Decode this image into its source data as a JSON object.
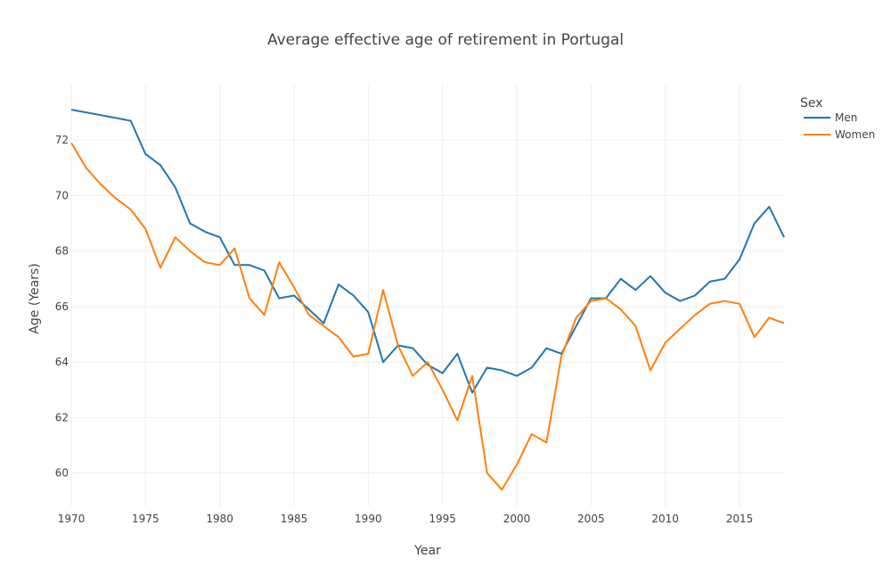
{
  "chart_data": {
    "type": "line",
    "title": "Average effective age of retirement in Portugal",
    "xlabel": "Year",
    "ylabel": "Age (Years)",
    "legend_title": "Sex",
    "legend_position": "top-right",
    "grid": true,
    "xlim": [
      1970,
      2018
    ],
    "ylim": [
      58.8,
      74.0
    ],
    "xticks": [
      1970,
      1975,
      1980,
      1985,
      1990,
      1995,
      2000,
      2005,
      2010,
      2015
    ],
    "yticks": [
      60,
      62,
      64,
      66,
      68,
      70,
      72
    ],
    "x": [
      1970,
      1971,
      1972,
      1973,
      1974,
      1975,
      1976,
      1977,
      1978,
      1979,
      1980,
      1981,
      1982,
      1983,
      1984,
      1985,
      1986,
      1987,
      1988,
      1989,
      1990,
      1991,
      1992,
      1993,
      1994,
      1995,
      1996,
      1997,
      1998,
      1999,
      2000,
      2001,
      2002,
      2003,
      2004,
      2005,
      2006,
      2007,
      2008,
      2009,
      2010,
      2011,
      2012,
      2013,
      2014,
      2015,
      2016,
      2017,
      2018
    ],
    "series": [
      {
        "name": "Men",
        "color": "#1f77b4",
        "values": [
          73.1,
          73.0,
          72.9,
          72.8,
          72.7,
          71.5,
          71.1,
          70.3,
          69.0,
          68.7,
          68.5,
          67.5,
          67.5,
          67.3,
          66.3,
          66.4,
          65.9,
          65.4,
          66.8,
          66.4,
          65.8,
          64.0,
          64.6,
          64.5,
          63.9,
          63.6,
          64.3,
          62.9,
          63.8,
          63.7,
          63.5,
          63.8,
          64.5,
          64.3,
          65.3,
          66.3,
          66.3,
          67.0,
          66.6,
          67.1,
          66.5,
          66.2,
          66.4,
          66.9,
          67.0,
          67.7,
          69.0,
          69.6,
          68.5
        ]
      },
      {
        "name": "Women",
        "color": "#ff7f0e",
        "values": [
          71.9,
          71.0,
          70.4,
          69.9,
          69.5,
          68.8,
          67.4,
          68.5,
          68.0,
          67.6,
          67.5,
          68.1,
          66.3,
          65.7,
          67.6,
          66.7,
          65.7,
          65.3,
          64.9,
          64.2,
          64.3,
          66.6,
          64.6,
          63.5,
          64.0,
          63.0,
          61.9,
          63.5,
          60.0,
          59.4,
          60.3,
          61.4,
          61.1,
          64.2,
          65.6,
          66.2,
          66.3,
          65.9,
          65.3,
          63.7,
          64.7,
          65.2,
          65.7,
          66.1,
          66.2,
          66.1,
          64.9,
          65.6,
          65.4
        ]
      }
    ]
  }
}
